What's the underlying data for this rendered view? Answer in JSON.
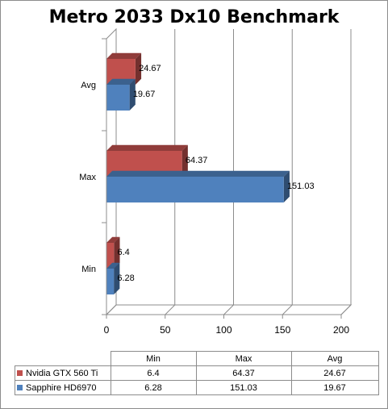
{
  "chart_data": {
    "type": "bar",
    "orientation": "horizontal",
    "style": "3d-clustered",
    "title": "Metro 2033 Dx10 Benchmark",
    "categories": [
      "Min",
      "Max",
      "Avg"
    ],
    "series": [
      {
        "name": "Nvidia GTX 560 Ti",
        "color": "#c0504d",
        "values": [
          6.4,
          64.37,
          24.67
        ],
        "value_labels": [
          "6.4",
          "64.37",
          "24.67"
        ]
      },
      {
        "name": "Sapphire HD6970",
        "color": "#4f81bd",
        "values": [
          6.28,
          151.03,
          19.67
        ],
        "value_labels": [
          "6.28",
          "151.03",
          "19.67"
        ]
      }
    ],
    "xlim": [
      0,
      200
    ],
    "x_ticks": [
      "0",
      "50",
      "100",
      "150",
      "200"
    ],
    "grid": true,
    "data_table": {
      "column_headers": [
        "Min",
        "Max",
        "Avg"
      ],
      "rows": [
        {
          "series": "Nvidia GTX 560 Ti",
          "cells": [
            "6.4",
            "64.37",
            "24.67"
          ]
        },
        {
          "series": "Sapphire HD6970",
          "cells": [
            "6.28",
            "151.03",
            "19.67"
          ]
        }
      ]
    }
  }
}
